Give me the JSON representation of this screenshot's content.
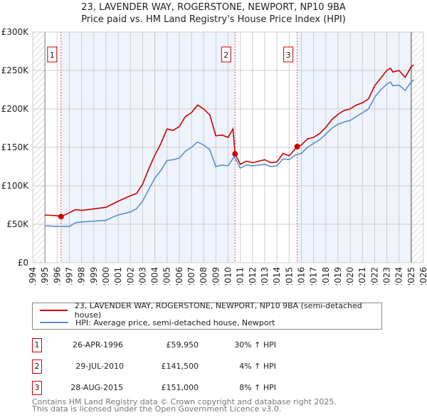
{
  "title": "23, LAVENDER WAY, ROGERSTONE, NEWPORT, NP10 9BA",
  "subtitle": "Price paid vs. HM Land Registry's House Price Index (HPI)",
  "chart_data": {
    "type": "line",
    "title": "23, LAVENDER WAY, ROGERSTONE, NEWPORT, NP10 9BA",
    "subtitle": "Price paid vs. HM Land Registry's House Price Index (HPI)",
    "xlim": [
      1994,
      2026
    ],
    "ylim": [
      0,
      300000
    ],
    "x_ticks": [
      "1994",
      "1995",
      "1996",
      "1997",
      "1998",
      "1999",
      "2000",
      "2001",
      "2002",
      "2003",
      "2004",
      "2005",
      "2006",
      "2007",
      "2008",
      "2009",
      "2010",
      "2011",
      "2012",
      "2013",
      "2014",
      "2015",
      "2016",
      "2017",
      "2018",
      "2019",
      "2020",
      "2021",
      "2022",
      "2023",
      "2024",
      "2025",
      "2026"
    ],
    "y_ticks": [
      {
        "v": 0,
        "label": "£0"
      },
      {
        "v": 50000,
        "label": "£50K"
      },
      {
        "v": 100000,
        "label": "£100K"
      },
      {
        "v": 150000,
        "label": "£150K"
      },
      {
        "v": 200000,
        "label": "£200K"
      },
      {
        "v": 250000,
        "label": "£250K"
      },
      {
        "v": 300000,
        "label": "£300K"
      }
    ],
    "grid": true,
    "series": [
      {
        "name": "23, LAVENDER WAY, ROGERSTONE, NEWPORT, NP10 9BA (semi-detached house)",
        "color": "#cc0000",
        "x": [
          1995,
          1996,
          1996.32,
          1997,
          1997.5,
          1998,
          1999,
          2000,
          2000.5,
          2001,
          2002,
          2002.5,
          2003,
          2003.5,
          2004,
          2004.5,
          2005,
          2005.5,
          2006,
          2006.5,
          2007,
          2007.5,
          2008,
          2008.5,
          2009,
          2009.5,
          2010,
          2010.4,
          2010.57,
          2011,
          2011.5,
          2012,
          2013,
          2013.5,
          2014,
          2014.5,
          2015,
          2015.66,
          2016,
          2016.5,
          2017,
          2017.5,
          2018,
          2018.5,
          2019,
          2019.5,
          2020,
          2020.5,
          2021,
          2021.5,
          2022,
          2022.5,
          2023,
          2023.3,
          2023.5,
          2024,
          2024.5,
          2025,
          2025.2
        ],
        "y": [
          62000,
          61000,
          59950,
          65000,
          69000,
          68000,
          70000,
          72000,
          76000,
          80000,
          87000,
          90000,
          102000,
          122000,
          140000,
          155000,
          174000,
          172000,
          177000,
          190000,
          195000,
          205000,
          200000,
          192000,
          165000,
          166000,
          163000,
          174000,
          141500,
          128000,
          132000,
          130000,
          134000,
          130000,
          131000,
          142000,
          139000,
          151000,
          153000,
          161000,
          163000,
          168000,
          176000,
          186000,
          193000,
          198000,
          200000,
          205000,
          208000,
          213000,
          230000,
          240000,
          250000,
          253000,
          248000,
          250000,
          241000,
          255000,
          257000
        ]
      },
      {
        "name": "HPI: Average price, semi-detached house, Newport",
        "color": "#5b8fd0",
        "x": [
          1995,
          1996,
          1997,
          1997.5,
          1998,
          1999,
          2000,
          2000.5,
          2001,
          2002,
          2002.5,
          2003,
          2003.5,
          2004,
          2004.5,
          2005,
          2005.5,
          2006,
          2006.5,
          2007,
          2007.5,
          2008,
          2008.5,
          2009,
          2009.5,
          2010,
          2010.5,
          2011,
          2011.5,
          2012,
          2013,
          2013.5,
          2014,
          2014.5,
          2015,
          2015.5,
          2016,
          2016.5,
          2017,
          2017.5,
          2018,
          2018.5,
          2019,
          2019.5,
          2020,
          2020.5,
          2021,
          2021.5,
          2022,
          2022.5,
          2023,
          2023.3,
          2023.5,
          2024,
          2024.5,
          2025,
          2025.2
        ],
        "y": [
          48000,
          47000,
          47000,
          52000,
          53000,
          54000,
          55000,
          59000,
          62000,
          66000,
          70000,
          80000,
          95000,
          110000,
          120000,
          133000,
          134000,
          136000,
          145000,
          150000,
          157000,
          153000,
          147000,
          125000,
          127000,
          126000,
          138000,
          123000,
          127000,
          126000,
          128000,
          125000,
          126000,
          135000,
          134000,
          140000,
          142000,
          150000,
          155000,
          160000,
          167000,
          175000,
          180000,
          183000,
          185000,
          190000,
          195000,
          200000,
          215000,
          225000,
          232000,
          235000,
          230000,
          231000,
          224000,
          235000,
          238000
        ]
      }
    ],
    "annotations": [
      {
        "label": "1",
        "x": 1996.32,
        "y": 59950
      },
      {
        "label": "2",
        "x": 2010.57,
        "y": 141500
      },
      {
        "label": "3",
        "x": 2015.66,
        "y": 151000
      }
    ]
  },
  "legend": [
    {
      "label": "23, LAVENDER WAY, ROGERSTONE, NEWPORT, NP10 9BA (semi-detached house)",
      "color": "#cc0000"
    },
    {
      "label": "HPI: Average price, semi-detached house, Newport",
      "color": "#5b8fd0"
    }
  ],
  "sales": [
    {
      "num": "1",
      "date": "26-APR-1996",
      "price": "£59,950",
      "hpi": "30% ↑ HPI"
    },
    {
      "num": "2",
      "date": "29-JUL-2010",
      "price": "£141,500",
      "hpi": "4% ↑ HPI"
    },
    {
      "num": "3",
      "date": "28-AUG-2015",
      "price": "£151,000",
      "hpi": "8% ↑ HPI"
    }
  ],
  "footer": {
    "line1": "Contains HM Land Registry data © Crown copyright and database right 2025.",
    "line2": "This data is licensed under the Open Government Licence v3.0."
  }
}
